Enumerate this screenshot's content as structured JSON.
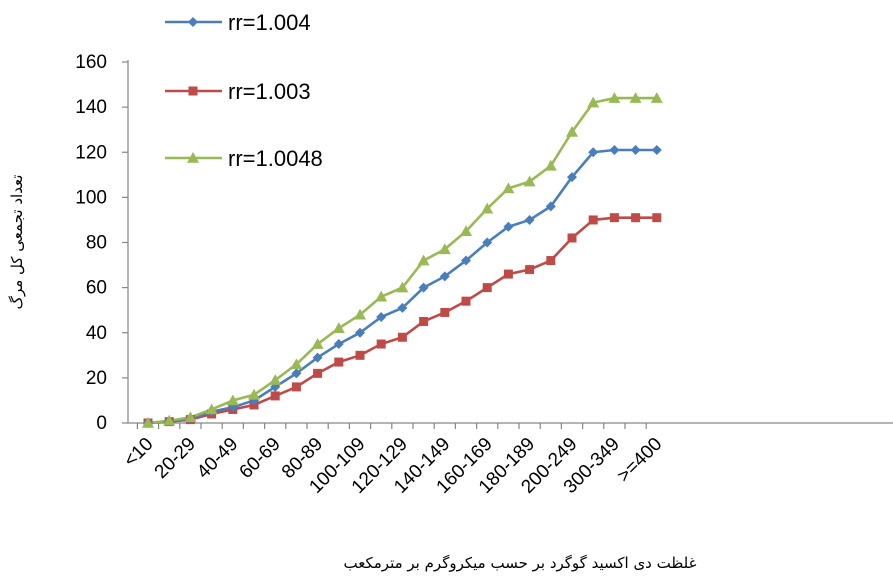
{
  "chart_data": {
    "type": "line",
    "ylabel": "تعداد تجمعی کل مرگ",
    "xlabel": "غلظت دی اکسید گوگرد بر حسب میکروگرم بر مترمکعب",
    "ylim": [
      0,
      160
    ],
    "yticks": [
      0,
      20,
      40,
      60,
      80,
      100,
      120,
      140,
      160
    ],
    "x_tick_labels": [
      "<10",
      "20-29",
      "40-49",
      "60-69",
      "80-89",
      "100-109",
      "120-129",
      "140-149",
      "160-169",
      "180-189",
      "200-249",
      "300-349",
      ">=400"
    ],
    "grid": false,
    "legend_position": "top-left",
    "series": [
      {
        "name": "rr=1.004",
        "color": "#4a7ebb",
        "marker": "diamond",
        "values": [
          0,
          0.8,
          2,
          5,
          7,
          10,
          16,
          22,
          29,
          35,
          40,
          47,
          51,
          60,
          65,
          72,
          80,
          87,
          90,
          96,
          109,
          120,
          121,
          121,
          121
        ]
      },
      {
        "name": "rr=1.003",
        "color": "#be4b48",
        "marker": "square",
        "values": [
          0,
          0.6,
          1.5,
          4,
          6,
          8,
          12,
          16,
          22,
          27,
          30,
          35,
          38,
          45,
          49,
          54,
          60,
          66,
          68,
          72,
          82,
          90,
          91,
          91,
          91
        ]
      },
      {
        "name": "rr=1.0048",
        "color": "#98b954",
        "marker": "triangle",
        "values": [
          0,
          1,
          2.5,
          6,
          10,
          12.5,
          19,
          26,
          35,
          42,
          48,
          56,
          60,
          72,
          77,
          85,
          95,
          104,
          107,
          114,
          129,
          142,
          144,
          144,
          144
        ]
      }
    ]
  }
}
